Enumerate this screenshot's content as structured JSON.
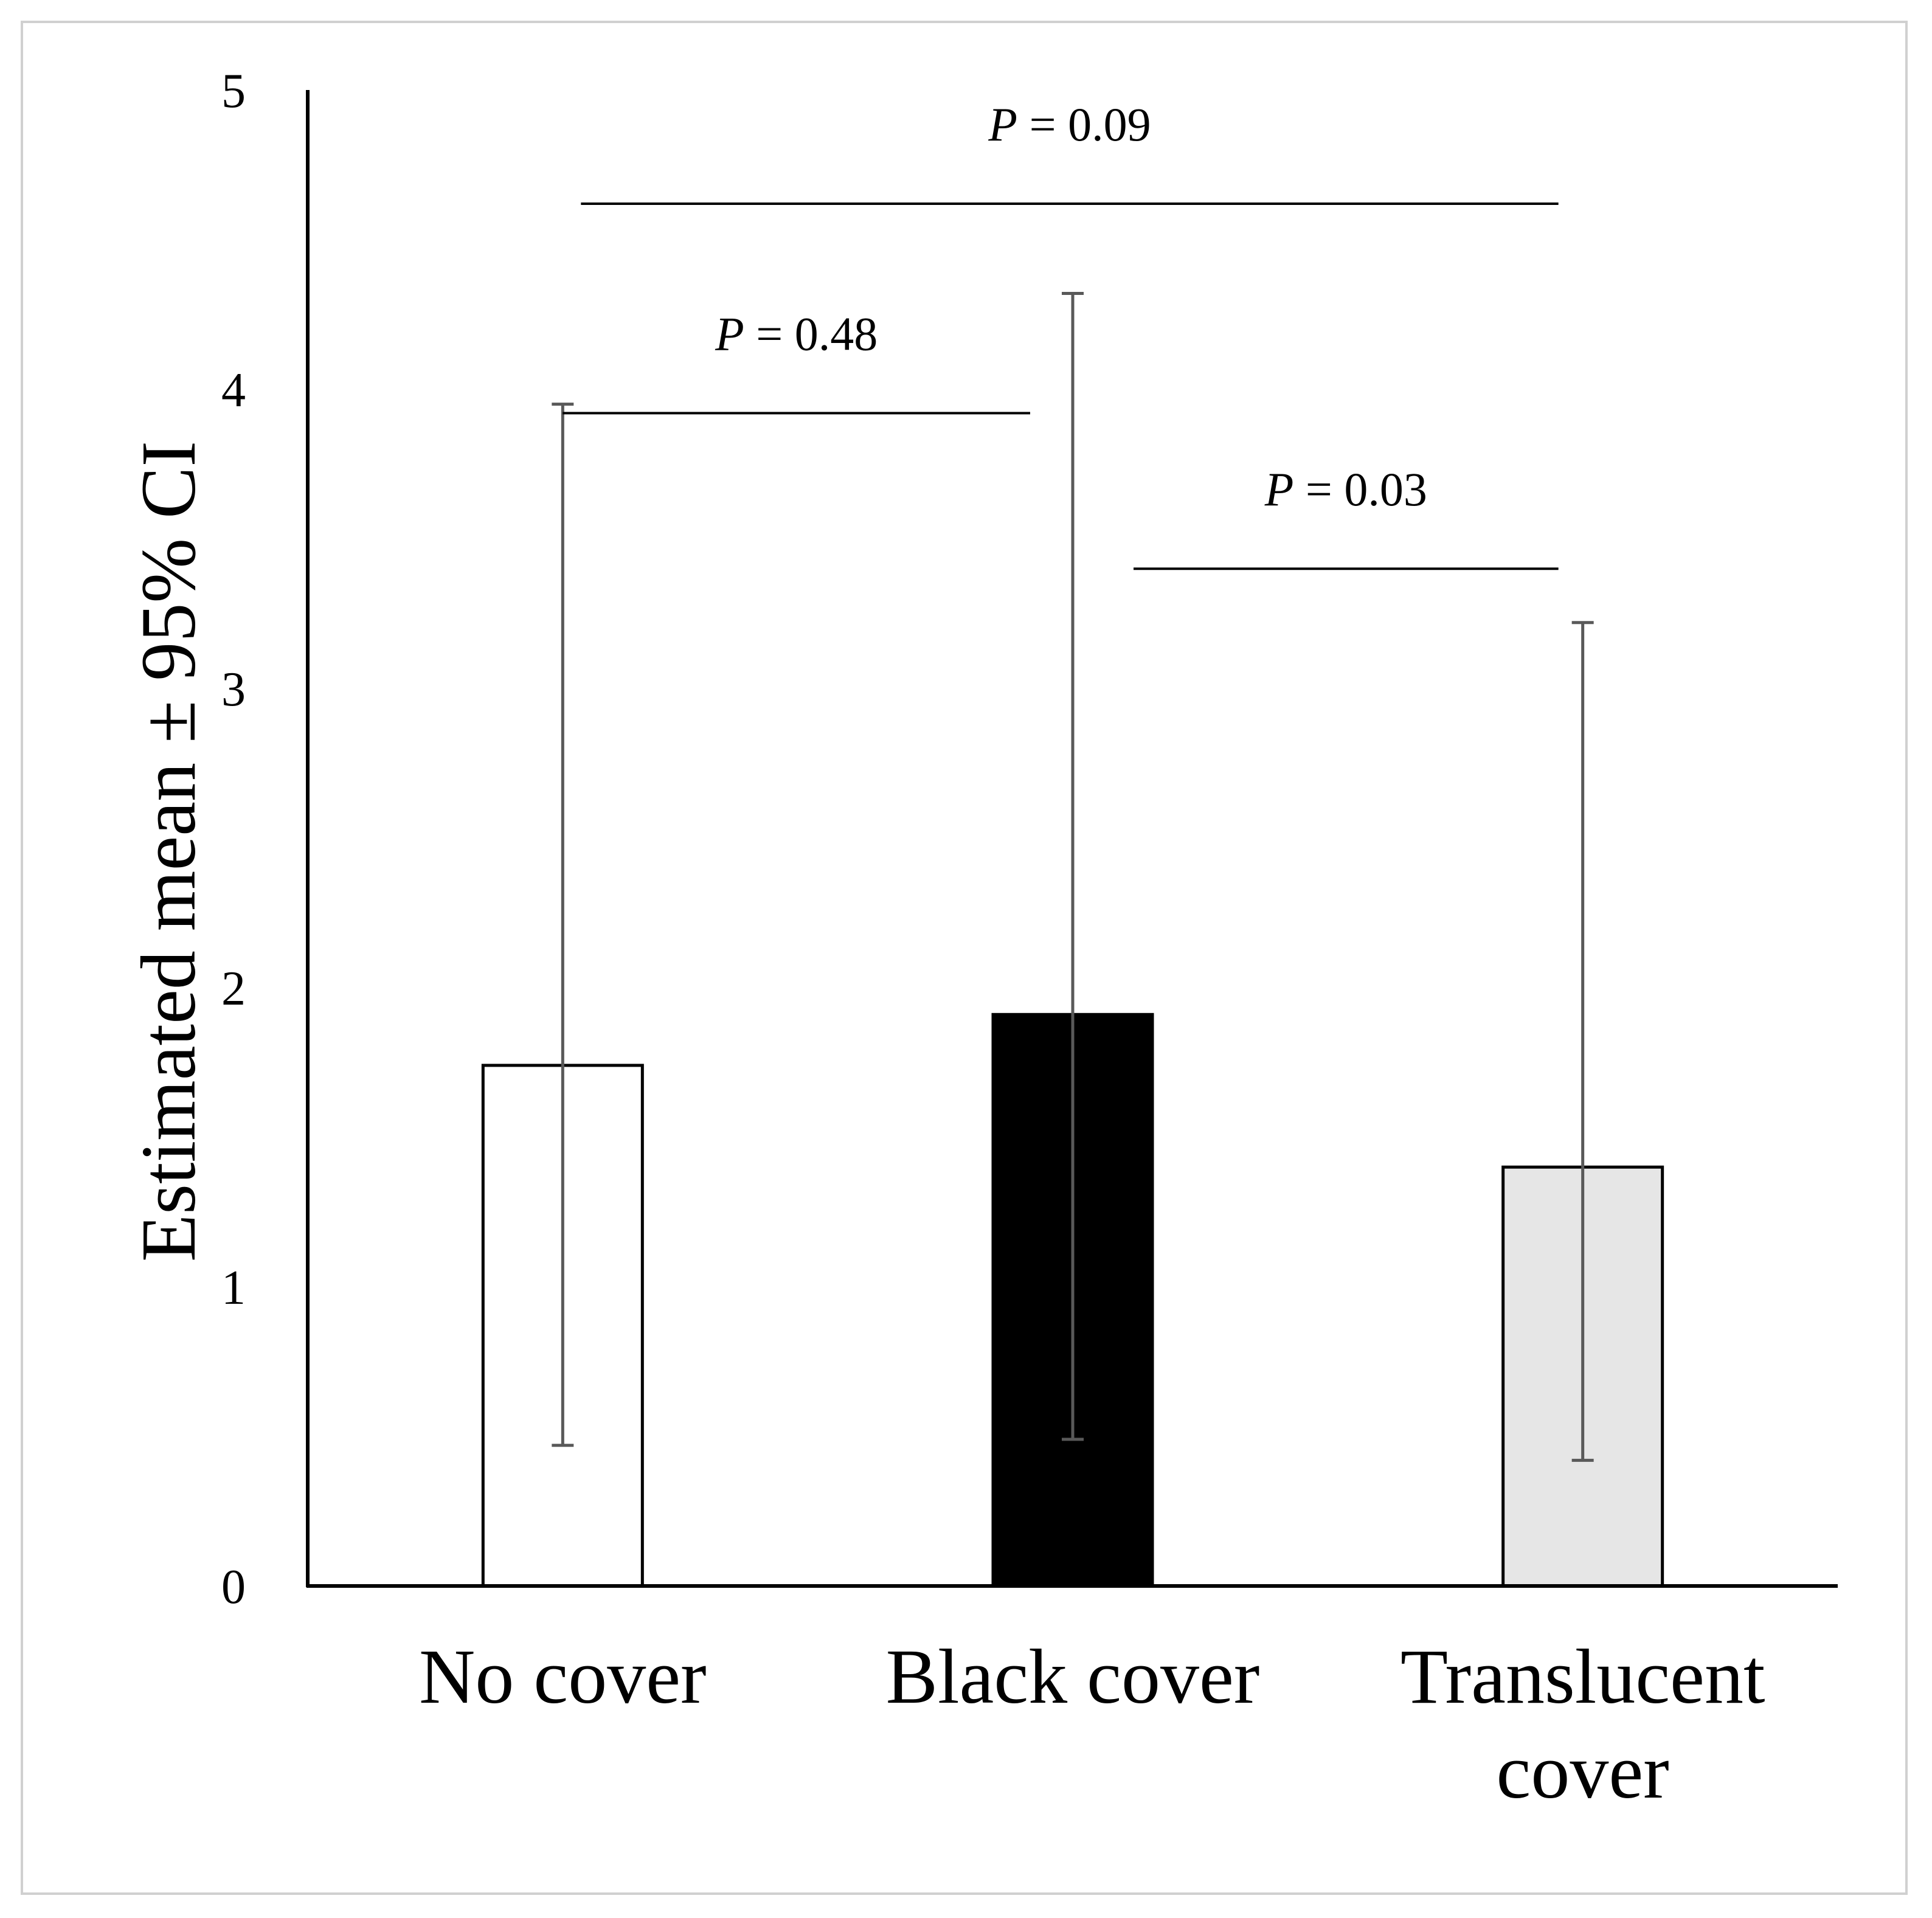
{
  "chart_data": {
    "type": "bar",
    "title": "",
    "xlabel": "",
    "ylabel": "Estimated mean ± 95% CI",
    "ylim": [
      0,
      5
    ],
    "yticks": [
      "0",
      "1",
      "2",
      "3",
      "4",
      "5"
    ],
    "categories": [
      [
        "No cover"
      ],
      [
        "Black cover"
      ],
      [
        "Translucent",
        "cover"
      ]
    ],
    "values": [
      1.74,
      1.91,
      1.4
    ],
    "ci_lower": [
      0.47,
      0.49,
      0.42
    ],
    "ci_upper": [
      3.95,
      4.32,
      3.22
    ],
    "bar_colors": [
      "#ffffff",
      "#000000",
      "#e6e6e6"
    ],
    "error_bar_color": "#595959",
    "comparisons": [
      {
        "from": 0,
        "to": 1,
        "p_label": "P",
        "p_value": "= 0.48",
        "y": 3.92
      },
      {
        "from": 1,
        "to": 2,
        "p_label": "P",
        "p_value": "= 0.03",
        "y": 3.4
      },
      {
        "from": 0,
        "to": 2,
        "p_label": "P",
        "p_value": "= 0.09",
        "y": 4.62
      }
    ],
    "grid": false,
    "legend": "none"
  }
}
